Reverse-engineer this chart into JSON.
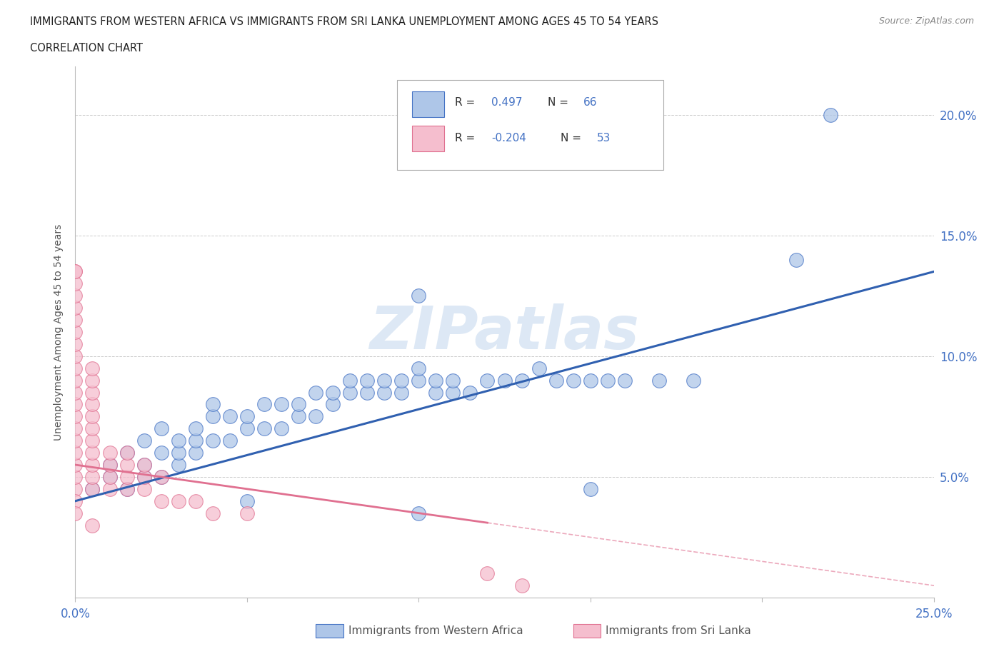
{
  "title_line1": "IMMIGRANTS FROM WESTERN AFRICA VS IMMIGRANTS FROM SRI LANKA UNEMPLOYMENT AMONG AGES 45 TO 54 YEARS",
  "title_line2": "CORRELATION CHART",
  "source_text": "Source: ZipAtlas.com",
  "ylabel": "Unemployment Among Ages 45 to 54 years",
  "xlim": [
    0.0,
    0.25
  ],
  "ylim": [
    0.0,
    0.22
  ],
  "blue_R": "0.497",
  "blue_N": "66",
  "pink_R": "-0.204",
  "pink_N": "53",
  "blue_color": "#aec6e8",
  "pink_color": "#f5bece",
  "blue_edge_color": "#4472c4",
  "pink_edge_color": "#e07090",
  "blue_line_color": "#3060b0",
  "pink_line_color": "#e07090",
  "watermark": "ZIPatlas",
  "watermark_color": "#dde8f5",
  "background_color": "#ffffff",
  "grid_color": "#cccccc",
  "blue_scatter": [
    [
      0.005,
      0.045
    ],
    [
      0.01,
      0.05
    ],
    [
      0.01,
      0.055
    ],
    [
      0.015,
      0.045
    ],
    [
      0.015,
      0.06
    ],
    [
      0.02,
      0.05
    ],
    [
      0.02,
      0.055
    ],
    [
      0.02,
      0.065
    ],
    [
      0.025,
      0.05
    ],
    [
      0.025,
      0.06
    ],
    [
      0.025,
      0.07
    ],
    [
      0.03,
      0.055
    ],
    [
      0.03,
      0.06
    ],
    [
      0.03,
      0.065
    ],
    [
      0.035,
      0.06
    ],
    [
      0.035,
      0.065
    ],
    [
      0.035,
      0.07
    ],
    [
      0.04,
      0.065
    ],
    [
      0.04,
      0.075
    ],
    [
      0.04,
      0.08
    ],
    [
      0.045,
      0.065
    ],
    [
      0.045,
      0.075
    ],
    [
      0.05,
      0.07
    ],
    [
      0.05,
      0.075
    ],
    [
      0.055,
      0.07
    ],
    [
      0.055,
      0.08
    ],
    [
      0.06,
      0.07
    ],
    [
      0.06,
      0.08
    ],
    [
      0.065,
      0.075
    ],
    [
      0.065,
      0.08
    ],
    [
      0.07,
      0.075
    ],
    [
      0.07,
      0.085
    ],
    [
      0.075,
      0.08
    ],
    [
      0.075,
      0.085
    ],
    [
      0.08,
      0.085
    ],
    [
      0.08,
      0.09
    ],
    [
      0.085,
      0.085
    ],
    [
      0.085,
      0.09
    ],
    [
      0.09,
      0.085
    ],
    [
      0.09,
      0.09
    ],
    [
      0.095,
      0.085
    ],
    [
      0.095,
      0.09
    ],
    [
      0.1,
      0.09
    ],
    [
      0.1,
      0.095
    ],
    [
      0.105,
      0.085
    ],
    [
      0.105,
      0.09
    ],
    [
      0.11,
      0.085
    ],
    [
      0.11,
      0.09
    ],
    [
      0.115,
      0.085
    ],
    [
      0.12,
      0.09
    ],
    [
      0.125,
      0.09
    ],
    [
      0.13,
      0.09
    ],
    [
      0.135,
      0.095
    ],
    [
      0.14,
      0.09
    ],
    [
      0.145,
      0.09
    ],
    [
      0.15,
      0.09
    ],
    [
      0.155,
      0.09
    ],
    [
      0.16,
      0.09
    ],
    [
      0.17,
      0.09
    ],
    [
      0.18,
      0.09
    ],
    [
      0.05,
      0.04
    ],
    [
      0.1,
      0.035
    ],
    [
      0.15,
      0.045
    ],
    [
      0.1,
      0.125
    ],
    [
      0.22,
      0.2
    ],
    [
      0.21,
      0.14
    ]
  ],
  "pink_scatter": [
    [
      0.0,
      0.045
    ],
    [
      0.0,
      0.05
    ],
    [
      0.0,
      0.055
    ],
    [
      0.0,
      0.06
    ],
    [
      0.0,
      0.065
    ],
    [
      0.0,
      0.07
    ],
    [
      0.0,
      0.075
    ],
    [
      0.0,
      0.08
    ],
    [
      0.0,
      0.085
    ],
    [
      0.0,
      0.09
    ],
    [
      0.0,
      0.095
    ],
    [
      0.0,
      0.1
    ],
    [
      0.0,
      0.105
    ],
    [
      0.0,
      0.11
    ],
    [
      0.0,
      0.115
    ],
    [
      0.0,
      0.12
    ],
    [
      0.0,
      0.125
    ],
    [
      0.0,
      0.13
    ],
    [
      0.0,
      0.135
    ],
    [
      0.005,
      0.045
    ],
    [
      0.005,
      0.05
    ],
    [
      0.005,
      0.055
    ],
    [
      0.005,
      0.06
    ],
    [
      0.005,
      0.065
    ],
    [
      0.005,
      0.07
    ],
    [
      0.005,
      0.075
    ],
    [
      0.005,
      0.08
    ],
    [
      0.005,
      0.085
    ],
    [
      0.005,
      0.09
    ],
    [
      0.005,
      0.095
    ],
    [
      0.01,
      0.045
    ],
    [
      0.01,
      0.05
    ],
    [
      0.01,
      0.055
    ],
    [
      0.01,
      0.06
    ],
    [
      0.015,
      0.045
    ],
    [
      0.015,
      0.05
    ],
    [
      0.015,
      0.055
    ],
    [
      0.015,
      0.06
    ],
    [
      0.02,
      0.045
    ],
    [
      0.02,
      0.05
    ],
    [
      0.02,
      0.055
    ],
    [
      0.025,
      0.04
    ],
    [
      0.025,
      0.05
    ],
    [
      0.03,
      0.04
    ],
    [
      0.035,
      0.04
    ],
    [
      0.04,
      0.035
    ],
    [
      0.05,
      0.035
    ],
    [
      0.0,
      0.135
    ],
    [
      0.0,
      0.04
    ],
    [
      0.0,
      0.035
    ],
    [
      0.12,
      0.01
    ],
    [
      0.13,
      0.005
    ],
    [
      0.005,
      0.03
    ]
  ]
}
